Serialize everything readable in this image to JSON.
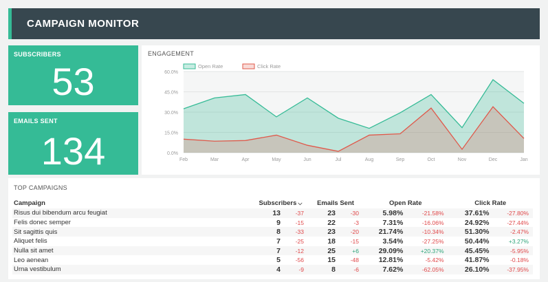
{
  "header": {
    "title": "CAMPAIGN MONITOR"
  },
  "kpis": [
    {
      "label": "SUBSCRIBERS",
      "value": "53"
    },
    {
      "label": "EMAILS SENT",
      "value": "134"
    }
  ],
  "engagement": {
    "title": "ENGAGEMENT"
  },
  "chart_data": {
    "type": "area",
    "title": "ENGAGEMENT",
    "categories": [
      "Feb",
      "Mar",
      "Apr",
      "May",
      "Jun",
      "Jul",
      "Aug",
      "Sep",
      "Oct",
      "Nov",
      "Dec",
      "Jan"
    ],
    "series": [
      {
        "name": "Open Rate",
        "color": "#35bb96",
        "values": [
          32.5,
          40.5,
          43,
          26.5,
          40.5,
          25.5,
          18,
          29.5,
          43,
          18.5,
          54,
          36.5
        ]
      },
      {
        "name": "Click Rate",
        "color": "#e0584a",
        "values": [
          10,
          8.5,
          9,
          13,
          5.5,
          1,
          13,
          14,
          33,
          2.5,
          34,
          10.5
        ]
      }
    ],
    "yticks": [
      "0.0%",
      "15.0%",
      "30.0%",
      "45.0%",
      "60.0%"
    ],
    "ylim": [
      0,
      60
    ],
    "grid": true,
    "legend": "top-left"
  },
  "table": {
    "title": "TOP CAMPAIGNS",
    "headers": {
      "campaign": "Campaign",
      "subscribers": "Subscribers",
      "emails_sent": "Emails Sent",
      "open_rate": "Open Rate",
      "click_rate": "Click Rate"
    },
    "sort_icon": "chevron-down-icon",
    "rows": [
      {
        "name": "Risus dui bibendum arcu feugiat",
        "subs": "13",
        "subs_d": "-37",
        "emails": "23",
        "emails_d": "-30",
        "open": "5.98%",
        "open_d": "-21.58%",
        "click": "37.61%",
        "click_d": "-27.80%"
      },
      {
        "name": "Felis donec semper",
        "subs": "9",
        "subs_d": "-15",
        "emails": "22",
        "emails_d": "-3",
        "open": "7.31%",
        "open_d": "-16.06%",
        "click": "24.92%",
        "click_d": "-27.44%"
      },
      {
        "name": "Sit sagittis quis",
        "subs": "8",
        "subs_d": "-33",
        "emails": "23",
        "emails_d": "-20",
        "open": "21.74%",
        "open_d": "-10.34%",
        "click": "51.30%",
        "click_d": "-2.47%"
      },
      {
        "name": "Aliquet felis",
        "subs": "7",
        "subs_d": "-25",
        "emails": "18",
        "emails_d": "-15",
        "open": "3.54%",
        "open_d": "-27.25%",
        "click": "50.44%",
        "click_d": "+3.27%"
      },
      {
        "name": "Nulla sit amet",
        "subs": "7",
        "subs_d": "-12",
        "emails": "25",
        "emails_d": "+6",
        "open": "29.09%",
        "open_d": "+20.37%",
        "click": "45.45%",
        "click_d": "-5.95%"
      },
      {
        "name": "Leo aenean",
        "subs": "5",
        "subs_d": "-56",
        "emails": "15",
        "emails_d": "-48",
        "open": "12.81%",
        "open_d": "-5.42%",
        "click": "41.87%",
        "click_d": "-0.18%"
      },
      {
        "name": "Urna vestibulum",
        "subs": "4",
        "subs_d": "-9",
        "emails": "8",
        "emails_d": "-6",
        "open": "7.62%",
        "open_d": "-62.05%",
        "click": "26.10%",
        "click_d": "-37.95%"
      }
    ]
  }
}
